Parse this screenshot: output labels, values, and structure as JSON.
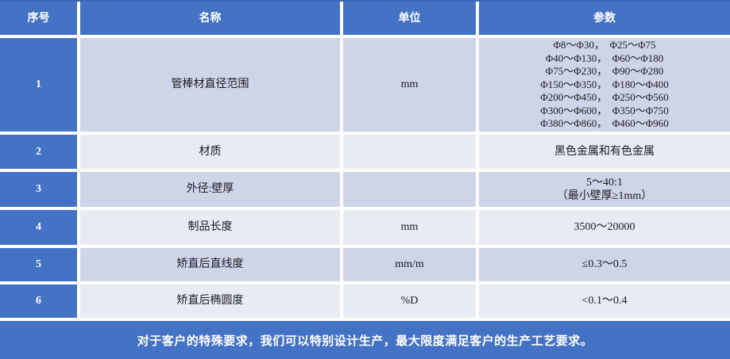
{
  "colors": {
    "header_blue": "#4472C4",
    "row_odd": "#CFD5E8",
    "row_even": "#E9EBF3",
    "text_dark": "#1B1B22",
    "banner_text": "#FFFFFF"
  },
  "table": {
    "headers": {
      "no": "序号",
      "name": "名称",
      "unit": "单位",
      "params": "参数"
    },
    "rows": [
      {
        "no": "1",
        "name": "管棒材直径范围",
        "unit": "mm",
        "params": "Φ8～Φ30，  Φ25～Φ75\nΦ40～Φ130，  Φ60～Φ180\nΦ75～Φ230，  Φ90～Φ280\nΦ150～Φ350，  Φ180～Φ400\nΦ200～Φ450，  Φ250～Φ560\nΦ300～Φ600，  Φ350～Φ750\nΦ380～Φ860，  Φ460～Φ960"
      },
      {
        "no": "2",
        "name": "材质",
        "unit": "",
        "params": "黑色金属和有色金属"
      },
      {
        "no": "3",
        "name": "外径:壁厚",
        "unit": "",
        "params": "5～40:1\n（最小壁厚≥1mm）"
      },
      {
        "no": "4",
        "name": "制品长度",
        "unit": "mm",
        "params": "3500～20000"
      },
      {
        "no": "5",
        "name": "矫直后直线度",
        "unit": "mm/m",
        "params": "≤0.3～0.5"
      },
      {
        "no": "6",
        "name": "矫直后椭圆度",
        "unit": "%D",
        "params": "<0.1～0.4"
      }
    ]
  },
  "footer": {
    "note": "对于客户的特殊要求，我们可以特别设计生产，最大限度满足客户的生产工艺要求。"
  }
}
